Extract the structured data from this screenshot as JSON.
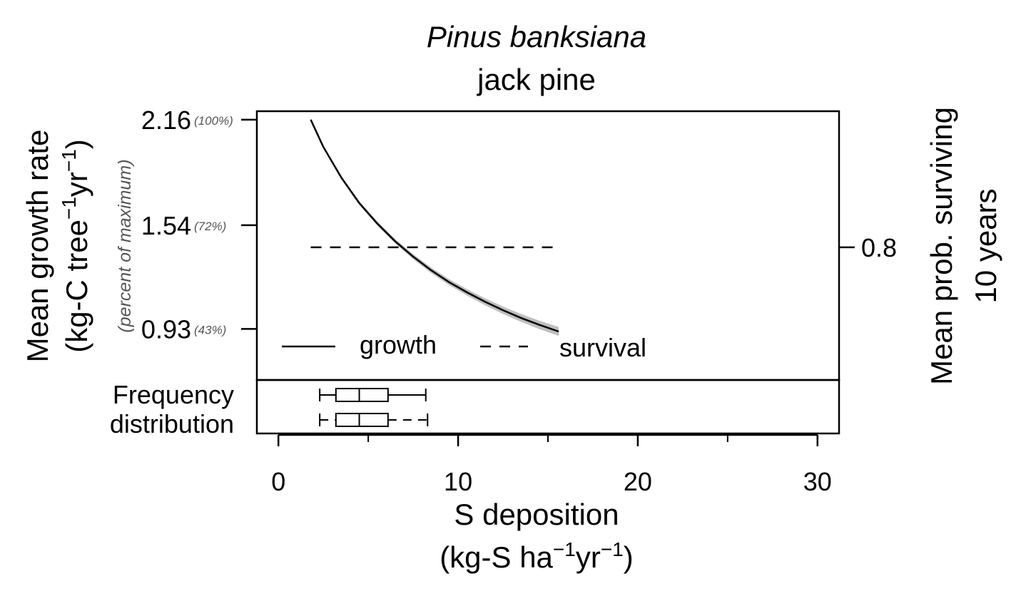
{
  "chart_data": {
    "type": "line",
    "title": "Pinus banksiana",
    "subtitle": "jack pine",
    "xlabel": "S deposition",
    "xlabel_units": {
      "base": "(kg-S ha",
      "sup1": "−1",
      "mid": "yr",
      "sup2": "−1",
      "end": ")"
    },
    "ylabel": "Mean growth rate",
    "ylabel_units": {
      "base": "(kg-C tree",
      "sup1": "−1",
      "mid": "yr",
      "sup2": "−1",
      "end": ")"
    },
    "ylabel_secondary": "(percent of maximum)",
    "y2label_line1": "Mean prob. surviving",
    "y2label_line2": "10 years",
    "xlim": [
      -1.2,
      31.2
    ],
    "ylim": [
      0.63,
      2.21
    ],
    "x_ticks": [
      0,
      10,
      20,
      30
    ],
    "x_tick_labels": [
      "0",
      "10",
      "20",
      "30"
    ],
    "x_minor_ticks": [
      5,
      15,
      25
    ],
    "y_ticks": [
      {
        "value": 2.16,
        "label": "2.16",
        "pct": "(100%)"
      },
      {
        "value": 1.54,
        "label": "1.54",
        "pct": "(72%)"
      },
      {
        "value": 0.93,
        "label": "0.93",
        "pct": "(43%)"
      }
    ],
    "y2_ticks": [
      {
        "value": 1.41,
        "label": "0.8"
      }
    ],
    "series": [
      {
        "name": "growth",
        "style": "solid",
        "color": "#000000",
        "band_color": "#bfbfbf",
        "x": [
          1.8,
          2.5,
          3.5,
          4.5,
          5.5,
          6.5,
          7.5,
          8.5,
          9.5,
          10.5,
          11.5,
          12.5,
          13.5,
          14.5,
          15.6
        ],
        "y": [
          2.16,
          2.0,
          1.82,
          1.67,
          1.55,
          1.445,
          1.355,
          1.275,
          1.205,
          1.145,
          1.09,
          1.04,
          0.995,
          0.955,
          0.915
        ],
        "band_halfwidth": 0.02
      },
      {
        "name": "survival",
        "style": "dashed",
        "color": "#000000",
        "x": [
          1.8,
          15.4
        ],
        "y": [
          1.41,
          1.41
        ]
      }
    ],
    "legend_position": "bottom-left",
    "freq_label_line1": "Frequency",
    "freq_label_line2": "distribution",
    "boxplots": [
      {
        "name": "growth",
        "min": 2.3,
        "q1": 3.2,
        "median": 4.5,
        "q3": 6.1,
        "max": 8.2,
        "whisker_style": "solid"
      },
      {
        "name": "survival",
        "min": 2.3,
        "q1": 3.2,
        "median": 4.5,
        "q3": 6.1,
        "max": 8.3,
        "whisker_style": "dashed"
      }
    ]
  }
}
